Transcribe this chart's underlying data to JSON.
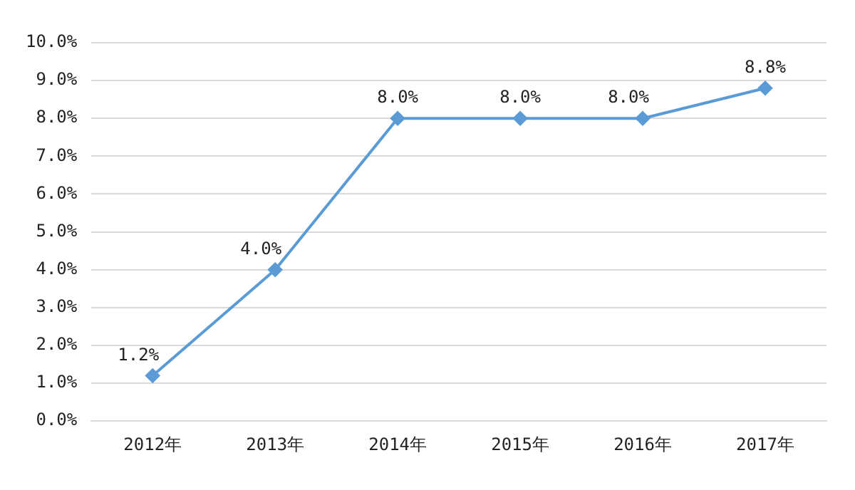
{
  "chart_data": {
    "type": "line",
    "categories": [
      "2012年",
      "2013年",
      "2014年",
      "2015年",
      "2016年",
      "2017年"
    ],
    "series": [
      {
        "color": "#5b9bd5",
        "values": [
          1.2,
          4.0,
          8.0,
          8.0,
          8.0,
          8.8
        ],
        "value_labels": [
          "1.2%",
          "4.0%",
          "8.0%",
          "8.0%",
          "8.0%",
          "8.8%"
        ]
      }
    ],
    "ylim": [
      0,
      10
    ],
    "yticks": [
      {
        "value": 0,
        "label": "0.0%"
      },
      {
        "value": 1,
        "label": "1.0%"
      },
      {
        "value": 2,
        "label": "2.0%"
      },
      {
        "value": 3,
        "label": "3.0%"
      },
      {
        "value": 4,
        "label": "4.0%"
      },
      {
        "value": 5,
        "label": "5.0%"
      },
      {
        "value": 6,
        "label": "6.0%"
      },
      {
        "value": 7,
        "label": "7.0%"
      },
      {
        "value": 8,
        "label": "8.0%"
      },
      {
        "value": 9,
        "label": "9.0%"
      },
      {
        "value": 10,
        "label": "10.0%"
      }
    ],
    "grid": "y",
    "legend": false,
    "marker": "diamond",
    "line_style": "solid"
  }
}
